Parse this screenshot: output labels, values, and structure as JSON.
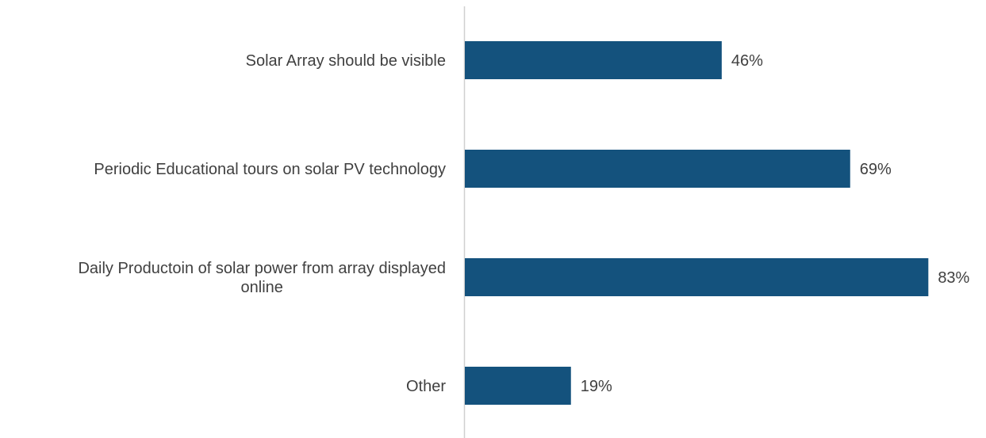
{
  "chart_data": {
    "type": "bar",
    "orientation": "horizontal",
    "categories": [
      [
        "Solar Array should be visible"
      ],
      [
        "Periodic Educational tours on solar PV technology"
      ],
      [
        "Daily Productoin of solar power from array displayed",
        "online"
      ],
      [
        "Other"
      ]
    ],
    "values": [
      46,
      69,
      83,
      19
    ],
    "value_labels": [
      "46%",
      "69%",
      "83%",
      "19%"
    ],
    "title": "",
    "xlabel": "",
    "ylabel": "",
    "xlim": [
      0,
      100
    ],
    "grid": false,
    "legend": "none",
    "bar_color": "#14527d",
    "axis_color": "#d0d0d0",
    "text_color": "#404040"
  }
}
